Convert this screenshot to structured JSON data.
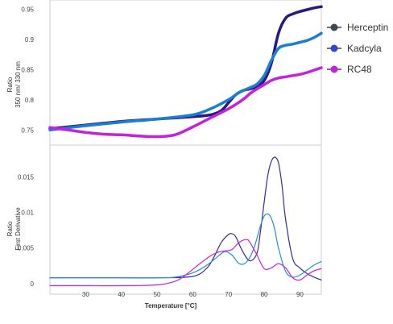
{
  "chart_data": [
    {
      "type": "line",
      "panel": "top",
      "ylabel_lines": [
        "Ratio",
        "350 nm/ 330 nm"
      ],
      "ylim": [
        0.725,
        0.965
      ],
      "xlim": [
        20,
        96
      ],
      "yticks": [
        0.75,
        0.8,
        0.85,
        0.9,
        0.95
      ],
      "ytick_labels": [
        "0.75",
        "0.8",
        "0.85",
        "0.9",
        "0.95"
      ],
      "grid": false,
      "series": [
        {
          "name": "Herceptin",
          "color": "#2a1880",
          "x": [
            20,
            30,
            40,
            50,
            60,
            65,
            68,
            70,
            72,
            74,
            76,
            78,
            80,
            82,
            84,
            86,
            88,
            90,
            92,
            94,
            96
          ],
          "y": [
            0.752,
            0.758,
            0.764,
            0.768,
            0.772,
            0.775,
            0.782,
            0.795,
            0.808,
            0.815,
            0.818,
            0.822,
            0.832,
            0.86,
            0.91,
            0.935,
            0.942,
            0.946,
            0.949,
            0.952,
            0.954
          ]
        },
        {
          "name": "Kadcyla",
          "color": "#1a7fd4",
          "x": [
            20,
            30,
            40,
            50,
            60,
            65,
            70,
            73,
            76,
            78,
            80,
            82,
            84,
            86,
            88,
            90,
            92,
            94,
            96
          ],
          "y": [
            0.75,
            0.757,
            0.763,
            0.768,
            0.775,
            0.785,
            0.8,
            0.812,
            0.82,
            0.826,
            0.84,
            0.865,
            0.885,
            0.89,
            0.892,
            0.895,
            0.898,
            0.903,
            0.91
          ]
        },
        {
          "name": "RC48",
          "color": "#c51fe0",
          "x": [
            20,
            25,
            30,
            35,
            40,
            45,
            50,
            55,
            60,
            65,
            70,
            74,
            76,
            78,
            80,
            82,
            84,
            86,
            88,
            90,
            92,
            94,
            96
          ],
          "y": [
            0.754,
            0.75,
            0.746,
            0.743,
            0.742,
            0.74,
            0.739,
            0.742,
            0.755,
            0.77,
            0.785,
            0.8,
            0.81,
            0.818,
            0.825,
            0.832,
            0.836,
            0.838,
            0.84,
            0.842,
            0.845,
            0.849,
            0.853
          ]
        }
      ]
    },
    {
      "type": "line",
      "panel": "bottom",
      "ylabel_lines": [
        "Ratio",
        "First Derivative"
      ],
      "xlabel": "Temperature [°C]",
      "xlim": [
        20,
        96
      ],
      "ylim": [
        -0.0015,
        0.0195
      ],
      "xticks": [
        30,
        40,
        50,
        60,
        70,
        80,
        90
      ],
      "xtick_labels": [
        "30",
        "40",
        "50",
        "60",
        "70",
        "80",
        "90"
      ],
      "yticks": [
        0,
        0.005,
        0.01,
        0.015
      ],
      "ytick_labels": [
        "0",
        "0.005",
        "0.01",
        "0.015"
      ],
      "grid": false,
      "series": [
        {
          "name": "Herceptin",
          "color": "#3a2a9a",
          "x": [
            20,
            30,
            40,
            50,
            60,
            64,
            66,
            68,
            70,
            71,
            72,
            74,
            76,
            78,
            79,
            80,
            81,
            82,
            83,
            84,
            85,
            86,
            88,
            90,
            92,
            94,
            96
          ],
          "y": [
            0.0008,
            0.0008,
            0.0008,
            0.0008,
            0.001,
            0.0022,
            0.0038,
            0.0058,
            0.0069,
            0.007,
            0.0066,
            0.0045,
            0.0032,
            0.0043,
            0.0075,
            0.0115,
            0.0152,
            0.0172,
            0.0178,
            0.017,
            0.0138,
            0.009,
            0.0035,
            0.0022,
            0.0014,
            0.0009,
            0.0005
          ]
        },
        {
          "name": "Kadcyla",
          "color": "#2a8ce0",
          "x": [
            20,
            30,
            40,
            50,
            55,
            60,
            64,
            67,
            69,
            71,
            73,
            75,
            77,
            79,
            80,
            81,
            82,
            83,
            84,
            86,
            88,
            90,
            92,
            94,
            96
          ],
          "y": [
            0.0008,
            0.0008,
            0.0008,
            0.0008,
            0.0009,
            0.0015,
            0.0026,
            0.0038,
            0.0045,
            0.004,
            0.0028,
            0.003,
            0.0048,
            0.0082,
            0.0095,
            0.0098,
            0.0092,
            0.0075,
            0.005,
            0.0017,
            0.0009,
            0.0012,
            0.0019,
            0.0026,
            0.0031
          ]
        },
        {
          "name": "RC48",
          "color": "#c51fe0",
          "x": [
            20,
            30,
            40,
            50,
            55,
            58,
            62,
            65,
            67,
            69,
            71,
            73,
            75,
            76,
            78,
            80,
            82,
            84,
            86,
            88,
            90,
            92,
            94,
            96
          ],
          "y": [
            -0.0003,
            -0.0003,
            -0.0003,
            -0.0002,
            0.0003,
            0.0012,
            0.0028,
            0.0039,
            0.0044,
            0.0046,
            0.0048,
            0.0058,
            0.0062,
            0.0058,
            0.004,
            0.0021,
            0.0022,
            0.0028,
            0.0022,
            0.0008,
            0.0005,
            0.0012,
            0.0018,
            0.0021
          ]
        }
      ]
    }
  ],
  "legend": {
    "placement": "top-right",
    "items": [
      {
        "label": "Herceptin",
        "line_color": "#444444",
        "marker_color": "#3a4a55"
      },
      {
        "label": "Kadcyla",
        "line_color": "#444444",
        "marker_color": "#3344d8"
      },
      {
        "label": "RC48",
        "line_color": "#444444",
        "marker_color": "#c51fe0"
      }
    ]
  }
}
